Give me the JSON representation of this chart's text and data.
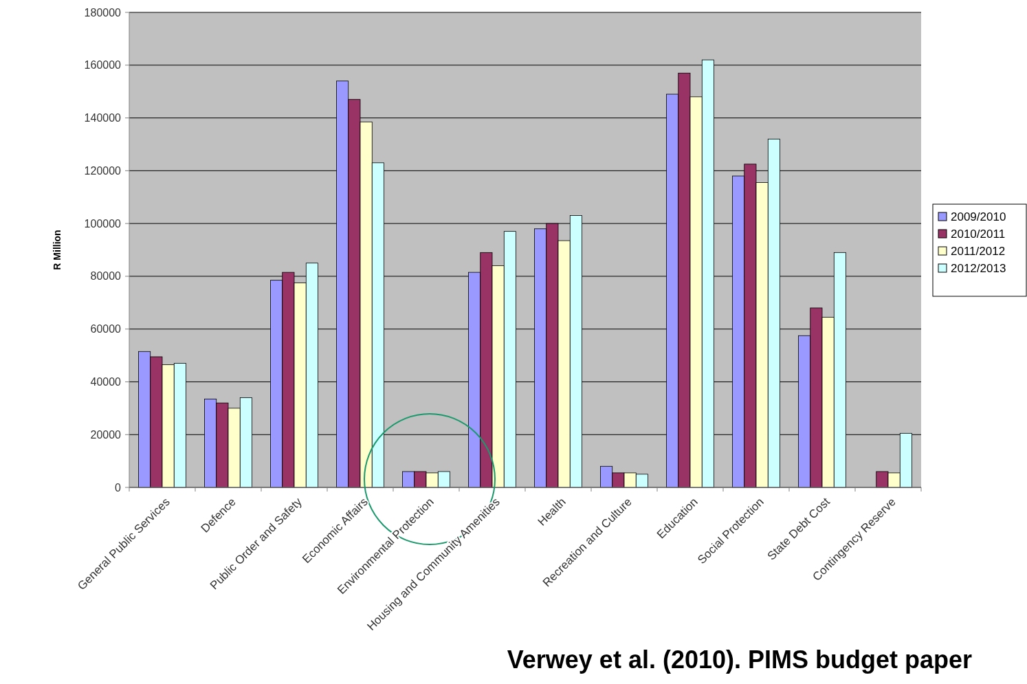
{
  "chart_data": {
    "type": "bar",
    "ylabel": "R Million",
    "categories": [
      "General Public Services",
      "Defence",
      "Public Order and Safety",
      "Economic Affairs",
      "Environmental Protection",
      "Housing and Community Amenities",
      "Health",
      "Recreation and Culture",
      "Education",
      "Social Protection",
      "State Debt Cost",
      "Contingency Reserve"
    ],
    "series": [
      {
        "name": "2009/2010",
        "color": "#9999ff",
        "values": [
          51500,
          33500,
          78500,
          154000,
          6000,
          81500,
          98000,
          8000,
          149000,
          118000,
          57500,
          null
        ]
      },
      {
        "name": "2010/2011",
        "color": "#993366",
        "values": [
          49500,
          32000,
          81500,
          147000,
          6000,
          89000,
          100000,
          5500,
          157000,
          122500,
          68000,
          6000
        ]
      },
      {
        "name": "2011/2012",
        "color": "#ffffcc",
        "values": [
          46500,
          30000,
          77500,
          138500,
          5500,
          84000,
          93500,
          5500,
          148000,
          115500,
          64500,
          5500
        ]
      },
      {
        "name": "2012/2013",
        "color": "#ccffff",
        "values": [
          47000,
          34000,
          85000,
          123000,
          6000,
          97000,
          103000,
          5000,
          162000,
          132000,
          89000,
          20500
        ]
      }
    ],
    "ylim": [
      0,
      180000
    ],
    "yticks": [
      0,
      20000,
      40000,
      60000,
      80000,
      100000,
      120000,
      140000,
      160000,
      180000
    ],
    "grid": "y",
    "legend": "right",
    "annotations": [
      "Verwey et al. (2010). PIMS budget paper"
    ]
  }
}
